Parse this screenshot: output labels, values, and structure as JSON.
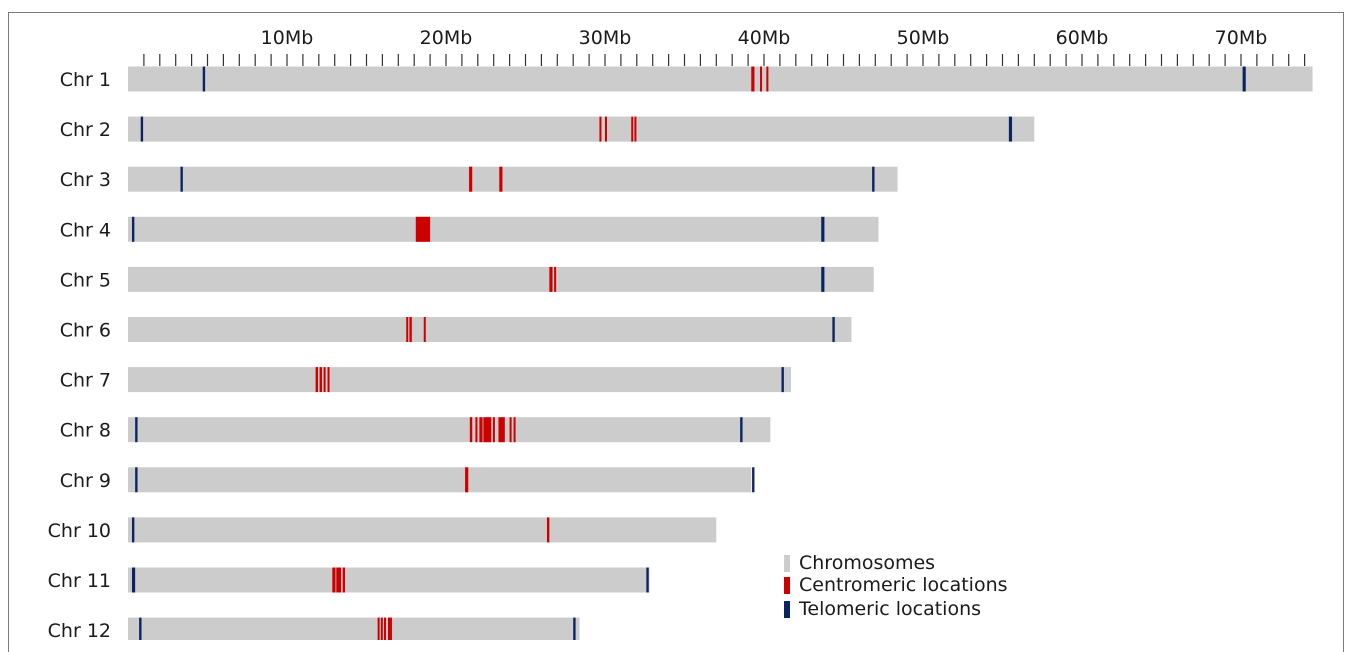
{
  "chart_data": {
    "type": "ideogram",
    "axis_ticks": [
      {
        "value": 10,
        "label": "10Mb"
      },
      {
        "value": 20,
        "label": "20Mb"
      },
      {
        "value": 30,
        "label": "30Mb"
      },
      {
        "value": 40,
        "label": "40Mb"
      },
      {
        "value": 50,
        "label": "50Mb"
      },
      {
        "value": 60,
        "label": "60Mb"
      },
      {
        "value": 70,
        "label": "70Mb"
      }
    ],
    "minor_tick_step": 1,
    "axis_max": 74.5,
    "chromosomes": [
      {
        "name": "Chr 1",
        "length": 74.5,
        "centromeric": [
          [
            39.2,
            39.4
          ],
          [
            39.75,
            39.85
          ],
          [
            40.15,
            40.25
          ]
        ],
        "telomeric": [
          [
            4.7,
            4.85
          ],
          [
            70.1,
            70.3
          ]
        ]
      },
      {
        "name": "Chr 2",
        "length": 57.0,
        "centromeric": [
          [
            29.65,
            29.75
          ],
          [
            30.0,
            30.1
          ],
          [
            31.65,
            31.75
          ],
          [
            31.85,
            31.95
          ]
        ],
        "telomeric": [
          [
            0.8,
            0.95
          ],
          [
            55.4,
            55.6
          ]
        ]
      },
      {
        "name": "Chr 3",
        "length": 48.4,
        "centromeric": [
          [
            21.45,
            21.65
          ],
          [
            23.35,
            23.55
          ]
        ],
        "telomeric": [
          [
            3.3,
            3.45
          ],
          [
            46.8,
            46.95
          ]
        ]
      },
      {
        "name": "Chr 4",
        "length": 47.2,
        "centromeric": [
          [
            18.1,
            19.0
          ]
        ],
        "telomeric": [
          [
            0.25,
            0.4
          ],
          [
            43.6,
            43.8
          ]
        ]
      },
      {
        "name": "Chr 5",
        "length": 46.9,
        "centromeric": [
          [
            26.5,
            26.7
          ],
          [
            26.8,
            26.9
          ]
        ],
        "telomeric": [
          [
            43.6,
            43.8
          ]
        ]
      },
      {
        "name": "Chr 6",
        "length": 45.5,
        "centromeric": [
          [
            17.5,
            17.6
          ],
          [
            17.7,
            17.85
          ],
          [
            18.6,
            18.7
          ]
        ],
        "telomeric": [
          [
            44.3,
            44.45
          ]
        ]
      },
      {
        "name": "Chr 7",
        "length": 41.7,
        "centromeric": [
          [
            11.8,
            11.95
          ],
          [
            12.05,
            12.2
          ],
          [
            12.3,
            12.4
          ],
          [
            12.55,
            12.65
          ]
        ],
        "telomeric": [
          [
            41.1,
            41.25
          ]
        ]
      },
      {
        "name": "Chr 8",
        "length": 40.4,
        "centromeric": [
          [
            21.5,
            21.65
          ],
          [
            21.85,
            21.95
          ],
          [
            22.1,
            22.3
          ],
          [
            22.35,
            22.85
          ],
          [
            22.95,
            23.05
          ],
          [
            23.3,
            23.7
          ],
          [
            24.0,
            24.1
          ],
          [
            24.25,
            24.35
          ]
        ],
        "telomeric": [
          [
            0.45,
            0.6
          ],
          [
            38.5,
            38.65
          ]
        ]
      },
      {
        "name": "Chr 9",
        "length": 39.2,
        "centromeric": [
          [
            21.2,
            21.4
          ]
        ],
        "telomeric": [
          [
            0.45,
            0.6
          ],
          [
            39.25,
            39.4
          ]
        ]
      },
      {
        "name": "Chr 10",
        "length": 37.0,
        "centromeric": [
          [
            26.35,
            26.5
          ]
        ],
        "telomeric": [
          [
            0.25,
            0.4
          ]
        ]
      },
      {
        "name": "Chr 11",
        "length": 32.8,
        "centromeric": [
          [
            12.85,
            13.05
          ],
          [
            13.1,
            13.4
          ],
          [
            13.5,
            13.65
          ]
        ],
        "telomeric": [
          [
            0.25,
            0.45
          ],
          [
            32.6,
            32.75
          ]
        ]
      },
      {
        "name": "Chr 12",
        "length": 28.4,
        "centromeric": [
          [
            15.7,
            15.8
          ],
          [
            15.9,
            16.0
          ],
          [
            16.1,
            16.2
          ],
          [
            16.35,
            16.6
          ]
        ],
        "telomeric": [
          [
            0.7,
            0.85
          ],
          [
            28.0,
            28.15
          ]
        ]
      }
    ],
    "legend": [
      {
        "label": "Chromosomes",
        "color": "#cccccc"
      },
      {
        "label": "Centromeric locations",
        "color": "#cc0000"
      },
      {
        "label": "Telomeric locations",
        "color": "#0a2463"
      }
    ],
    "colors": {
      "chromosome": "#cccccc",
      "centromeric": "#cc0000",
      "telomeric": "#0a2463"
    }
  }
}
